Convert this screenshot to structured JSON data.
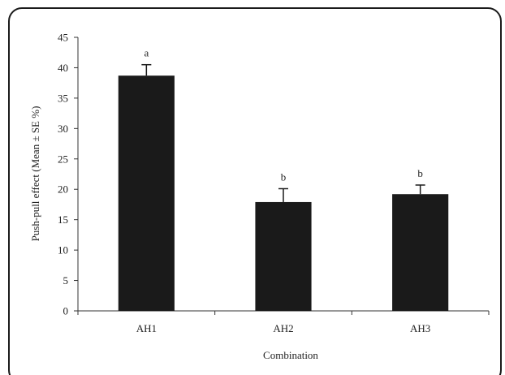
{
  "colors": {
    "frame_border": "#1b1b1b",
    "frame_background": "#ffffff",
    "bar_fill": "#1a1a1a",
    "axis": "#333333",
    "text": "#222222"
  },
  "chart_data": {
    "type": "bar",
    "title": "",
    "xlabel": "Combination",
    "ylabel": "Push-pull effect (Mean ± SE %)",
    "ylim": [
      0,
      45
    ],
    "yticks": [
      0,
      5,
      10,
      15,
      20,
      25,
      30,
      35,
      40,
      45
    ],
    "grid": false,
    "legend": "none",
    "categories": [
      "AH1",
      "AH2",
      "AH3"
    ],
    "values": [
      38.7,
      17.9,
      19.2
    ],
    "errors": [
      1.8,
      2.2,
      1.5
    ],
    "significance_letters": [
      "a",
      "b",
      "b"
    ]
  }
}
